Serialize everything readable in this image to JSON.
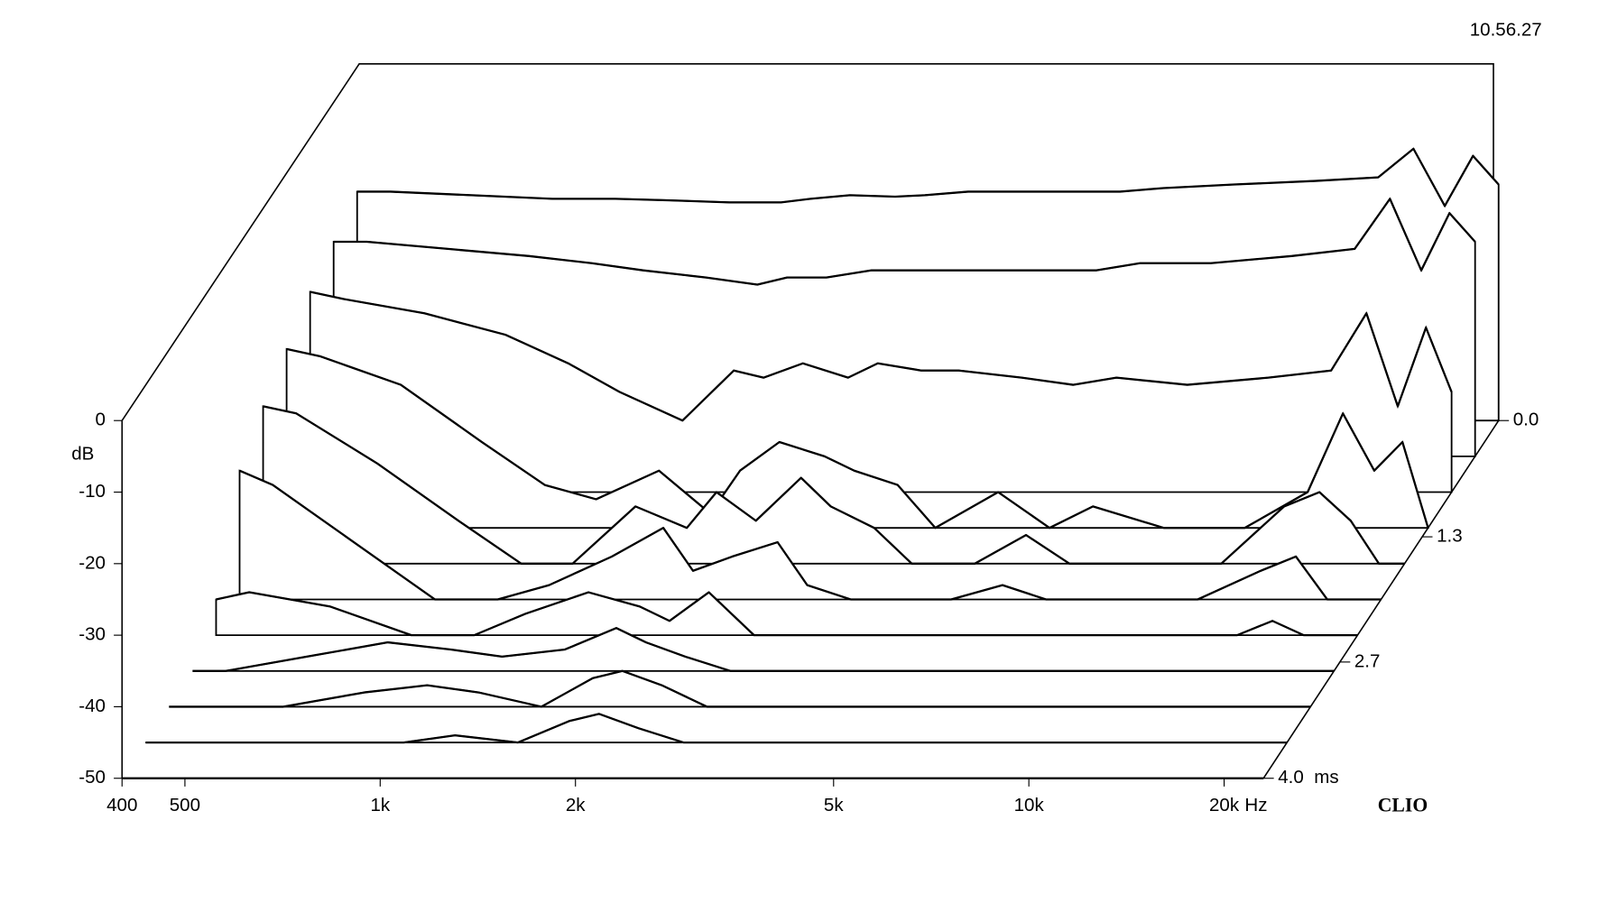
{
  "chart_data": {
    "type": "waterfall",
    "timestamp": "10.56.27",
    "brand": "CLIO",
    "y_label": "dB",
    "x_unit": "Hz",
    "z_unit": "ms",
    "color": "#000000",
    "log_x": true,
    "xlim": [
      400,
      23000
    ],
    "xticks": [
      400,
      500,
      {
        "value": 1000,
        "label": "1k"
      },
      {
        "value": 2000,
        "label": "2k"
      },
      {
        "value": 5000,
        "label": "5k"
      },
      {
        "value": 10000,
        "label": "10k"
      },
      {
        "value": 20000,
        "label": "20k"
      }
    ],
    "ylim": [
      -50,
      0
    ],
    "yticks": [
      0,
      -10,
      -20,
      -30,
      -40,
      -50
    ],
    "zlim": [
      0,
      4
    ],
    "zticks": [
      {
        "value": 0,
        "label": "0.0"
      },
      1.3,
      2.7,
      {
        "value": 4,
        "label": "4.0"
      }
    ],
    "x": [
      400,
      450,
      600,
      800,
      1000,
      1200,
      1500,
      1800,
      2000,
      2300,
      2700,
      3000,
      3500,
      4000,
      5000,
      6000,
      7000,
      9000,
      12000,
      15000,
      17000,
      19000,
      21000,
      23000
    ],
    "z": [
      0,
      0.4,
      0.8,
      1.2,
      1.6,
      2.0,
      2.4,
      2.8,
      3.2,
      3.6,
      4.0
    ],
    "series": [
      {
        "values": [
          -18,
          -18,
          -18.5,
          -19,
          -19,
          -19.2,
          -19.5,
          -19.5,
          -19,
          -18.5,
          -18.7,
          -18.5,
          -18,
          -18,
          -18,
          -18,
          -17.5,
          -17,
          -16.5,
          -16,
          -12,
          -20,
          -13,
          -17
        ]
      },
      {
        "values": [
          -20,
          -20,
          -21,
          -22,
          -23,
          -24,
          -25,
          -26,
          -25,
          -25,
          -24,
          -24,
          -24,
          -24,
          -24,
          -24,
          -23,
          -23,
          -22,
          -21,
          -14,
          -24,
          -16,
          -20
        ]
      },
      {
        "values": [
          -22,
          -23,
          -25,
          -28,
          -32,
          -36,
          -40,
          -33,
          -34,
          -32,
          -34,
          -32,
          -33,
          -33,
          -34,
          -35,
          -34,
          -35,
          -34,
          -33,
          -25,
          -38,
          -27,
          -36
        ]
      },
      {
        "values": [
          -25,
          -26,
          -30,
          -38,
          -44,
          -46,
          -42,
          -48,
          -42,
          -38,
          -40,
          -42,
          -44,
          -50,
          -45,
          -50,
          -47,
          -50,
          -50,
          -45,
          -34,
          -42,
          -38,
          -50
        ]
      },
      {
        "values": [
          -28,
          -29,
          -36,
          -44,
          -50,
          -50,
          -42,
          -45,
          -40,
          -44,
          -38,
          -42,
          -45,
          -50,
          -50,
          -46,
          -50,
          -50,
          -50,
          -42,
          -40,
          -44,
          -50,
          -50
        ]
      },
      {
        "values": [
          -32,
          -34,
          -42,
          -50,
          -50,
          -48,
          -44,
          -40,
          -46,
          -44,
          -42,
          -48,
          -50,
          -50,
          -50,
          -48,
          -50,
          -50,
          -50,
          -46,
          -44,
          -50,
          -50,
          -50
        ]
      },
      {
        "values": [
          -45,
          -44,
          -46,
          -50,
          -50,
          -47,
          -44,
          -46,
          -48,
          -44,
          -50,
          -50,
          -50,
          -50,
          -50,
          -50,
          -50,
          -50,
          -50,
          -50,
          -48,
          -50,
          -50,
          -50
        ]
      },
      {
        "values": [
          -50,
          -50,
          -48,
          -46,
          -47,
          -48,
          -47,
          -44,
          -46,
          -48,
          -50,
          -50,
          -50,
          -50,
          -50,
          -50,
          -50,
          -50,
          -50,
          -50,
          -50,
          -50,
          -50,
          -50
        ]
      },
      {
        "values": [
          -50,
          -50,
          -50,
          -48,
          -47,
          -48,
          -50,
          -46,
          -45,
          -47,
          -50,
          -50,
          -50,
          -50,
          -50,
          -50,
          -50,
          -50,
          -50,
          -50,
          -50,
          -50,
          -50,
          -50
        ]
      },
      {
        "values": [
          -50,
          -50,
          -50,
          -50,
          -50,
          -49,
          -50,
          -47,
          -46,
          -48,
          -50,
          -50,
          -50,
          -50,
          -50,
          -50,
          -50,
          -50,
          -50,
          -50,
          -50,
          -50,
          -50,
          -50
        ]
      },
      {
        "values": [
          -50,
          -50,
          -50,
          -50,
          -50,
          -50,
          -50,
          -50,
          -50,
          -50,
          -50,
          -50,
          -50,
          -50,
          -50,
          -50,
          -50,
          -50,
          -50,
          -50,
          -50,
          -50,
          -50,
          -50
        ]
      }
    ]
  }
}
